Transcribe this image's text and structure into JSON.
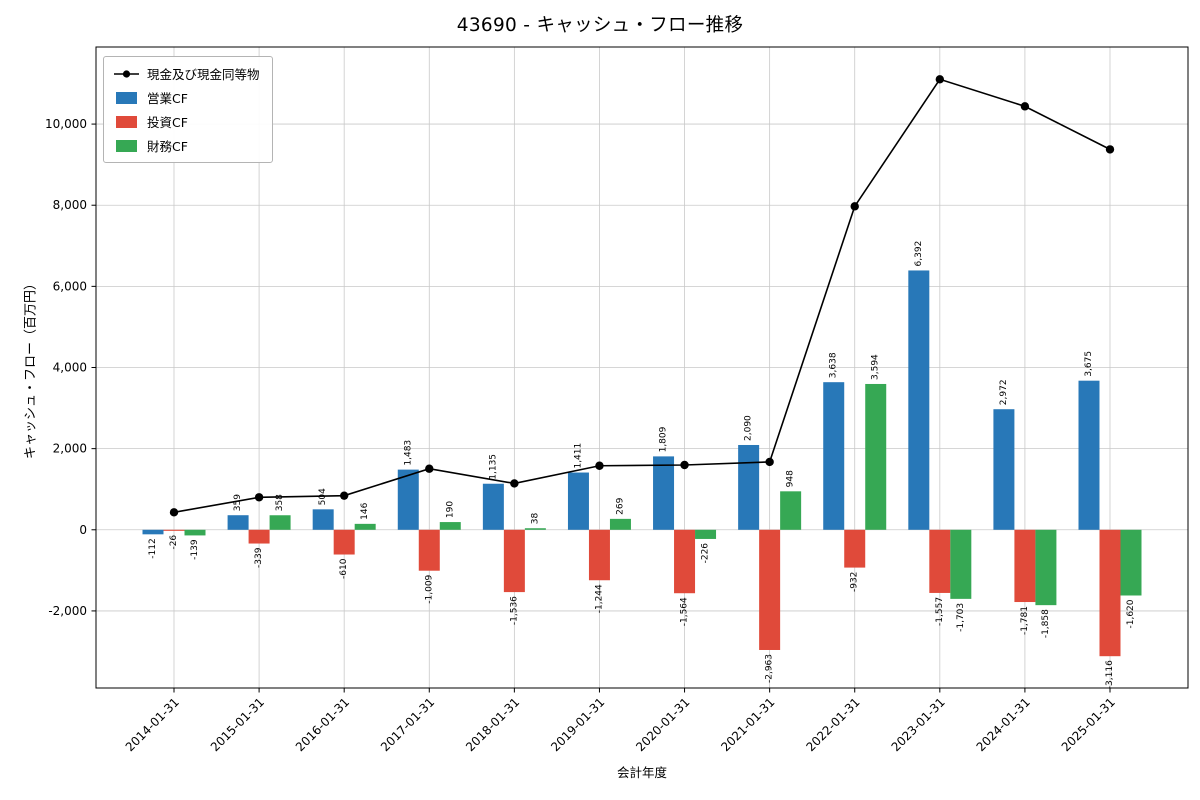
{
  "page": {
    "background": "#ffffff"
  },
  "chart_data": {
    "type": "bar+line",
    "title": "43690 - キャッシュ・フロー推移",
    "xlabel": "会計年度",
    "ylabel": "キャッシュ・フロー（百万円）",
    "categories": [
      "2014-01-31",
      "2015-01-31",
      "2016-01-31",
      "2017-01-31",
      "2018-01-31",
      "2019-01-31",
      "2020-01-31",
      "2021-01-31",
      "2022-01-31",
      "2023-01-31",
      "2024-01-31",
      "2025-01-31"
    ],
    "bar_series": [
      {
        "name": "営業CF",
        "color": "#2878b8",
        "values": [
          -112,
          359,
          504,
          1483,
          1135,
          1411,
          1809,
          2090,
          3638,
          6392,
          2972,
          3675
        ]
      },
      {
        "name": "投資CF",
        "color": "#e04a3a",
        "values": [
          -26,
          -339,
          -610,
          -1009,
          -1536,
          -1244,
          -1564,
          -2963,
          -932,
          -1557,
          -1781,
          -3116
        ]
      },
      {
        "name": "財務CF",
        "color": "#36a854",
        "values": [
          -139,
          358,
          146,
          190,
          38,
          269,
          -226,
          948,
          3594,
          -1703,
          -1858,
          -1620
        ]
      }
    ],
    "line_series": {
      "name": "現金及び現金同等物",
      "color": "#000000",
      "values": [
        430,
        801,
        841,
        1505,
        1142,
        1578,
        1597,
        1672,
        7972,
        11104,
        10437,
        9376
      ]
    },
    "ylim": [
      -3900,
      11900
    ],
    "yticks": [
      -2000,
      0,
      2000,
      4000,
      6000,
      8000,
      10000
    ],
    "grid": true,
    "legend_position": "upper-left",
    "grid_color": "#c9c9c9",
    "axis_color": "#000000"
  }
}
